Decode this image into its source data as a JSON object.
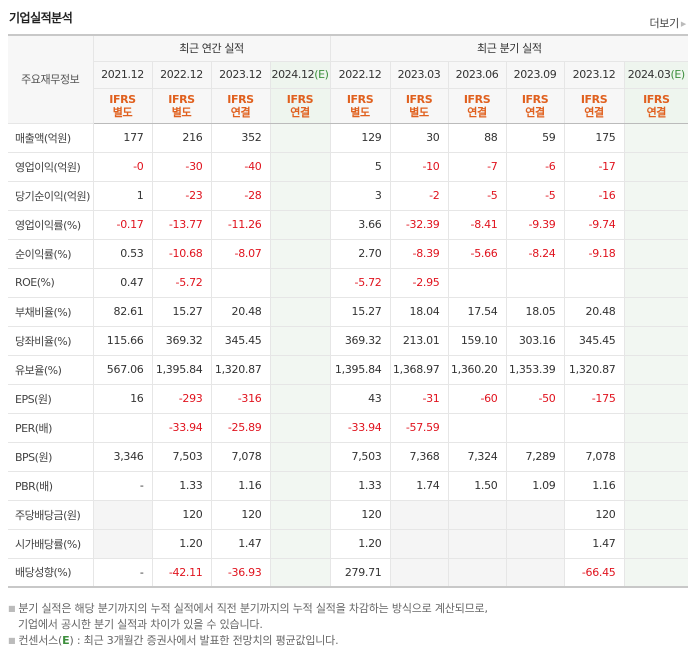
{
  "header": {
    "title": "기업실적분석",
    "more_label": "더보기"
  },
  "table": {
    "label_header": "주요재무정보",
    "groups": {
      "annual": "최근 연간 실적",
      "quarterly": "최근 분기 실적"
    },
    "estimate_suffix": "(E)",
    "columns": [
      {
        "period": "2021.12",
        "std": "IFRS",
        "type": "별도",
        "estimate": false
      },
      {
        "period": "2022.12",
        "std": "IFRS",
        "type": "별도",
        "estimate": false
      },
      {
        "period": "2023.12",
        "std": "IFRS",
        "type": "연결",
        "estimate": false
      },
      {
        "period": "2024.12",
        "std": "IFRS",
        "type": "연결",
        "estimate": true
      },
      {
        "period": "2022.12",
        "std": "IFRS",
        "type": "별도",
        "estimate": false
      },
      {
        "period": "2023.03",
        "std": "IFRS",
        "type": "별도",
        "estimate": false
      },
      {
        "period": "2023.06",
        "std": "IFRS",
        "type": "연결",
        "estimate": false
      },
      {
        "period": "2023.09",
        "std": "IFRS",
        "type": "연결",
        "estimate": false
      },
      {
        "period": "2023.12",
        "std": "IFRS",
        "type": "연결",
        "estimate": false
      },
      {
        "period": "2024.03",
        "std": "IFRS",
        "type": "연결",
        "estimate": true
      }
    ],
    "rows": [
      {
        "label": "매출액(억원)",
        "values": [
          "177",
          "216",
          "352",
          "",
          "129",
          "30",
          "88",
          "59",
          "175",
          ""
        ]
      },
      {
        "label": "영업이익(억원)",
        "values": [
          "-0",
          "-30",
          "-40",
          "",
          "5",
          "-10",
          "-7",
          "-6",
          "-17",
          ""
        ]
      },
      {
        "label": "당기순이익(억원)",
        "values": [
          "1",
          "-23",
          "-28",
          "",
          "3",
          "-2",
          "-5",
          "-5",
          "-16",
          ""
        ]
      },
      {
        "label": "영업이익률(%)",
        "values": [
          "-0.17",
          "-13.77",
          "-11.26",
          "",
          "3.66",
          "-32.39",
          "-8.41",
          "-9.39",
          "-9.74",
          ""
        ]
      },
      {
        "label": "순이익률(%)",
        "values": [
          "0.53",
          "-10.68",
          "-8.07",
          "",
          "2.70",
          "-8.39",
          "-5.66",
          "-8.24",
          "-9.18",
          ""
        ]
      },
      {
        "label": "ROE(%)",
        "values": [
          "0.47",
          "-5.72",
          "",
          "",
          "-5.72",
          "-2.95",
          "",
          "",
          "",
          ""
        ]
      },
      {
        "label": "부채비율(%)",
        "values": [
          "82.61",
          "15.27",
          "20.48",
          "",
          "15.27",
          "18.04",
          "17.54",
          "18.05",
          "20.48",
          ""
        ]
      },
      {
        "label": "당좌비율(%)",
        "values": [
          "115.66",
          "369.32",
          "345.45",
          "",
          "369.32",
          "213.01",
          "159.10",
          "303.16",
          "345.45",
          ""
        ]
      },
      {
        "label": "유보율(%)",
        "values": [
          "567.06",
          "1,395.84",
          "1,320.87",
          "",
          "1,395.84",
          "1,368.97",
          "1,360.20",
          "1,353.39",
          "1,320.87",
          ""
        ]
      },
      {
        "label": "EPS(원)",
        "values": [
          "16",
          "-293",
          "-316",
          "",
          "43",
          "-31",
          "-60",
          "-50",
          "-175",
          ""
        ]
      },
      {
        "label": "PER(배)",
        "values": [
          "",
          "-33.94",
          "-25.89",
          "",
          "-33.94",
          "-57.59",
          "",
          "",
          "",
          ""
        ]
      },
      {
        "label": "BPS(원)",
        "values": [
          "3,346",
          "7,503",
          "7,078",
          "",
          "7,503",
          "7,368",
          "7,324",
          "7,289",
          "7,078",
          ""
        ]
      },
      {
        "label": "PBR(배)",
        "values": [
          "-",
          "1.33",
          "1.16",
          "",
          "1.33",
          "1.74",
          "1.50",
          "1.09",
          "1.16",
          ""
        ]
      },
      {
        "label": "주당배당금(원)",
        "values": [
          "",
          "120",
          "120",
          "",
          "120",
          "",
          "",
          "",
          "120",
          ""
        ],
        "na": [
          0,
          5,
          6,
          7
        ]
      },
      {
        "label": "시가배당률(%)",
        "values": [
          "",
          "1.20",
          "1.47",
          "",
          "1.20",
          "",
          "",
          "",
          "1.47",
          ""
        ],
        "na": [
          0,
          5,
          6,
          7
        ]
      },
      {
        "label": "배당성향(%)",
        "values": [
          "-",
          "-42.11",
          "-36.93",
          "",
          "279.71",
          "",
          "",
          "",
          "-66.45",
          ""
        ],
        "na": [
          5,
          6,
          7
        ]
      }
    ],
    "group_starts": [
      3,
      6,
      9,
      13
    ]
  },
  "notes": {
    "line1": "분기 실적은 해당 분기까지의 누적 실적에서 직전 분기까지의 누적 실적을 차감하는 방식으로 계산되므로,",
    "line2": "기업에서 공시한 분기 실적과 차이가 있을 수 있습니다.",
    "line3_prefix": "컨센서스(",
    "line3_e": "E",
    "line3_suffix": ") : 최근 3개월간 증권사에서 발표한 전망치의 평균값입니다."
  },
  "colors": {
    "ifrs_orange": "#e0601e",
    "negative_red": "#e0131e",
    "estimate_green": "#3d8f3d",
    "estimate_bg": "#f2f7f2"
  }
}
